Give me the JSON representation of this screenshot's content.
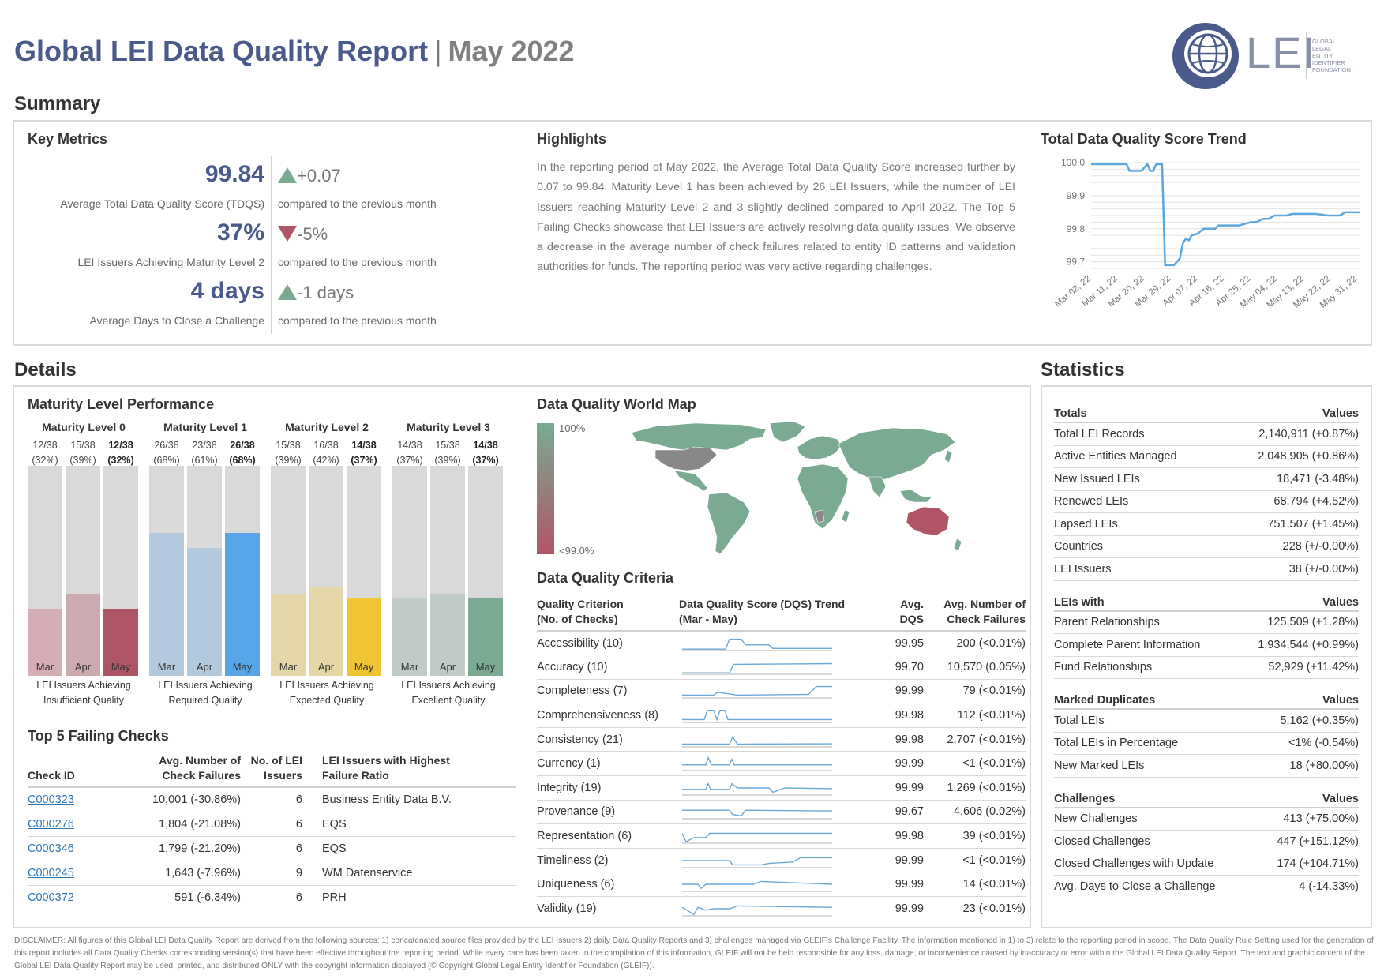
{
  "header": {
    "title": "Global LEI Data Quality Report",
    "separator": "|",
    "month": "May 2022",
    "logo": {
      "text": "LEI",
      "tagline": [
        "GLOBAL",
        "LEGAL",
        "ENTITY",
        "IDENTIFIER",
        "FOUNDATION"
      ]
    }
  },
  "sections": {
    "summary": "Summary",
    "details": "Details",
    "statistics": "Statistics"
  },
  "key_metrics": {
    "title": "Key Metrics",
    "items": [
      {
        "value": "99.84",
        "label": "Average Total Data Quality Score (TDQS)",
        "delta": "+0.07",
        "direction": "up",
        "delta_label": "compared to the previous month"
      },
      {
        "value": "37%",
        "label": "LEI Issuers Achieving Maturity Level 2",
        "delta": "-5%",
        "direction": "down",
        "delta_label": "compared to the previous month"
      },
      {
        "value": "4 days",
        "label": "Average Days to Close a Challenge",
        "delta": "-1 days",
        "direction": "up",
        "delta_label": "compared to the previous month"
      }
    ]
  },
  "highlights": {
    "title": "Highlights",
    "text": "In the reporting period of May 2022, the Average Total Data Quality Score increased further by 0.07 to 99.84. Maturity Level 1 has been achieved by 26 LEI Issuers, while the number of LEI Issuers reaching Maturity Level 2 and 3 slightly declined compared to April 2022. The Top 5 Failing Checks showcase that LEI Issuers are actively resolving data quality issues. We observe a decrease in the average number of check failures related to entity ID patterns and validation authorities for funds. The reporting period was very active regarding challenges."
  },
  "chart_data": {
    "type": "line",
    "title": "Total Data Quality Score Trend",
    "ylim": [
      99.68,
      100.0
    ],
    "yticks": [
      "100.0",
      "99.9",
      "99.8",
      "99.7"
    ],
    "ytick_values": [
      100.0,
      99.9,
      99.8,
      99.7
    ],
    "xticks": [
      "Mar 02, 22",
      "Mar 11, 22",
      "Mar 20, 22",
      "Mar 29, 22",
      "Apr 07, 22",
      "Apr 16, 22",
      "Apr 25, 22",
      "May 04, 22",
      "May 13, 22",
      "May 22, 22",
      "May 31, 22"
    ],
    "grid": true,
    "color": "#5ba7de",
    "x": [
      0,
      9,
      12,
      13,
      16,
      17,
      18,
      19,
      20,
      21,
      22,
      23,
      24,
      25,
      26,
      27,
      28,
      30,
      31,
      32,
      33,
      34,
      36,
      38,
      40,
      42,
      43,
      46,
      48,
      50,
      54,
      56,
      58,
      60,
      62,
      66,
      68,
      72,
      74,
      76,
      80,
      84,
      86,
      88,
      91
    ],
    "y": [
      99.9953,
      99.9953,
      99.9953,
      99.975,
      99.975,
      99.975,
      99.985,
      99.9953,
      99.975,
      99.975,
      99.9953,
      99.9953,
      99.9953,
      99.69,
      99.69,
      99.69,
      99.69,
      99.71,
      99.755,
      99.77,
      99.765,
      99.78,
      99.785,
      99.8,
      99.8,
      99.8,
      99.81,
      99.81,
      99.81,
      99.81,
      99.82,
      99.82,
      99.83,
      99.83,
      99.84,
      99.84,
      99.845,
      99.845,
      99.845,
      99.845,
      99.84,
      99.84,
      99.85,
      99.85,
      99.85
    ]
  },
  "maturity": {
    "title": "Maturity Level Performance",
    "months": [
      "Mar",
      "Apr",
      "May"
    ],
    "levels": [
      {
        "name": "Maturity Level 0",
        "counts": [
          "12/38",
          "15/38",
          "12/38"
        ],
        "pcts": [
          "(32%)",
          "(39%)",
          "(32%)"
        ],
        "values": [
          32,
          39,
          32
        ],
        "colors": [
          "#d4aeb4",
          "#cdaab0",
          "#b05566"
        ],
        "desc": [
          "LEI Issuers Achieving",
          "Insufficient Quality"
        ]
      },
      {
        "name": "Maturity Level 1",
        "counts": [
          "26/38",
          "23/38",
          "26/38"
        ],
        "pcts": [
          "(68%)",
          "(61%)",
          "(68%)"
        ],
        "values": [
          68,
          61,
          68
        ],
        "colors": [
          "#b2c9de",
          "#b2c9de",
          "#56a5e6"
        ],
        "desc": [
          "LEI Issuers Achieving",
          "Required Quality"
        ]
      },
      {
        "name": "Maturity Level 2",
        "counts": [
          "15/38",
          "16/38",
          "14/38"
        ],
        "pcts": [
          "(39%)",
          "(42%)",
          "(37%)"
        ],
        "values": [
          39,
          42,
          37
        ],
        "colors": [
          "#e4d6a6",
          "#e4d6a6",
          "#f0c534"
        ],
        "desc": [
          "LEI Issuers Achieving",
          "Expected Quality"
        ]
      },
      {
        "name": "Maturity Level 3",
        "counts": [
          "14/38",
          "15/38",
          "14/38"
        ],
        "pcts": [
          "(37%)",
          "(39%)",
          "(37%)"
        ],
        "values": [
          37,
          39,
          37
        ],
        "colors": [
          "#bfcbc4",
          "#bfcbc4",
          "#7aab92"
        ],
        "desc": [
          "LEI Issuers Achieving",
          "Excellent Quality"
        ]
      }
    ]
  },
  "failing_checks": {
    "title": "Top 5 Failing Checks",
    "headers": {
      "id": "Check ID",
      "avg": [
        "Avg. Number of",
        "Check Failures"
      ],
      "issuers": [
        "No. of LEI",
        "Issuers"
      ],
      "highest": [
        "LEI Issuers with Highest",
        "Failure Ratio"
      ]
    },
    "rows": [
      {
        "id": "C000323",
        "avg": "10,001 (-30.86%)",
        "issuers": "6",
        "highest": "Business Entity Data B.V."
      },
      {
        "id": "C000276",
        "avg": "1,804 (-21.08%)",
        "issuers": "6",
        "highest": "EQS"
      },
      {
        "id": "C000346",
        "avg": "1,799 (-21.20%)",
        "issuers": "6",
        "highest": "EQS"
      },
      {
        "id": "C000245",
        "avg": "1,643 (-7.96%)",
        "issuers": "9",
        "highest": "WM Datenservice"
      },
      {
        "id": "C000372",
        "avg": "591 (-6.34%)",
        "issuers": "6",
        "highest": "PRH"
      }
    ]
  },
  "world_map": {
    "title": "Data Quality World Map",
    "legend_max": "100%",
    "legend_min": "<99.0%",
    "colors": {
      "high": "#7aab92",
      "low": "#b05566",
      "nodata": "#888888"
    }
  },
  "criteria": {
    "title": "Data Quality Criteria",
    "headers": {
      "criterion": [
        "Quality Criterion",
        "(No. of Checks)"
      ],
      "trend": [
        "Data Quality Score (DQS) Trend",
        "(Mar - May)"
      ],
      "dqs": [
        "Avg.",
        "DQS"
      ],
      "failures": [
        "Avg. Number of",
        "Check Failures"
      ]
    },
    "rows": [
      {
        "name": "Accessibility (10)",
        "dqs": "99.95",
        "failures": "200 (<0.01%)"
      },
      {
        "name": "Accuracy (10)",
        "dqs": "99.70",
        "failures": "10,570 (0.05%)"
      },
      {
        "name": "Completeness (7)",
        "dqs": "99.99",
        "failures": "79 (<0.01%)"
      },
      {
        "name": "Comprehensiveness (8)",
        "dqs": "99.98",
        "failures": "112 (<0.01%)"
      },
      {
        "name": "Consistency (21)",
        "dqs": "99.98",
        "failures": "2,707 (<0.01%)"
      },
      {
        "name": "Currency (1)",
        "dqs": "99.99",
        "failures": "<1 (<0.01%)"
      },
      {
        "name": "Integrity (19)",
        "dqs": "99.99",
        "failures": "1,269 (<0.01%)"
      },
      {
        "name": "Provenance (9)",
        "dqs": "99.67",
        "failures": "4,606 (0.02%)"
      },
      {
        "name": "Representation (6)",
        "dqs": "99.98",
        "failures": "39 (<0.01%)"
      },
      {
        "name": "Timeliness (2)",
        "dqs": "99.99",
        "failures": "<1 (<0.01%)"
      },
      {
        "name": "Uniqueness (6)",
        "dqs": "99.99",
        "failures": "14 (<0.01%)"
      },
      {
        "name": "Validity (19)",
        "dqs": "99.99",
        "failures": "23 (<0.01%)"
      }
    ]
  },
  "statistics": {
    "groups": [
      {
        "title": "Totals",
        "values_label": "Values",
        "rows": [
          {
            "label": "Total LEI Records",
            "value": "2,140,911 (+0.87%)"
          },
          {
            "label": "Active Entities Managed",
            "value": "2,048,905 (+0.86%)"
          },
          {
            "label": "New Issued LEIs",
            "value": "18,471 (-3.48%)"
          },
          {
            "label": "Renewed LEIs",
            "value": "68,794 (+4.52%)"
          },
          {
            "label": "Lapsed LEIs",
            "value": "751,507 (+1.45%)"
          },
          {
            "label": "Countries",
            "value": "228 (+/-0.00%)"
          },
          {
            "label": "LEI Issuers",
            "value": "38 (+/-0.00%)"
          }
        ]
      },
      {
        "title": "LEIs with",
        "values_label": "Values",
        "rows": [
          {
            "label": "Parent Relationships",
            "value": "125,509 (+1.28%)"
          },
          {
            "label": "Complete Parent Information",
            "value": "1,934,544 (+0.99%)"
          },
          {
            "label": "Fund Relationships",
            "value": "52,929 (+11.42%)"
          }
        ]
      },
      {
        "title": "Marked Duplicates",
        "values_label": "Values",
        "rows": [
          {
            "label": "Total LEIs",
            "value": "5,162 (+0.35%)"
          },
          {
            "label": "Total LEIs in Percentage",
            "value": "<1% (-0.54%)"
          },
          {
            "label": "New Marked LEIs",
            "value": "18 (+80.00%)"
          }
        ]
      },
      {
        "title": "Challenges",
        "values_label": "Values",
        "rows": [
          {
            "label": "New Challenges",
            "value": "413 (+75.00%)"
          },
          {
            "label": "Closed Challenges",
            "value": "447 (+151.12%)"
          },
          {
            "label": "Closed Challenges with Update",
            "value": "174 (+104.71%)"
          },
          {
            "label": "Avg. Days to Close a Challenge",
            "value": "4 (-14.33%)"
          }
        ]
      }
    ]
  },
  "disclaimer": "DISCLAIMER: All figures of this Global LEI Data Quality Report are derived from the following sources: 1) concatenated source files provided by the LEI Issuers 2) daily Data Quality Reports and 3) challenges managed via GLEIF's Challenge Facility. The information mentioned in 1) to 3) relate to the reporting period in scope. The Data Quality Rule Setting used for the generation of this report includes all Data Quality Checks corresponding version(s) that have been effective throughout the reporting period. While every care has been taken in the compilation of this information, GLEIF will not be held responsible for any loss, damage, or inconvenience caused by inaccuracy or error within the Global LEI Data Quality Report. The text and graphic content of the Global LEI Data Quality Report may be used, printed, and distributed ONLY with the copyright information displayed (© Copyright Global Legal Entity Identifier Foundation (GLEIF))."
}
